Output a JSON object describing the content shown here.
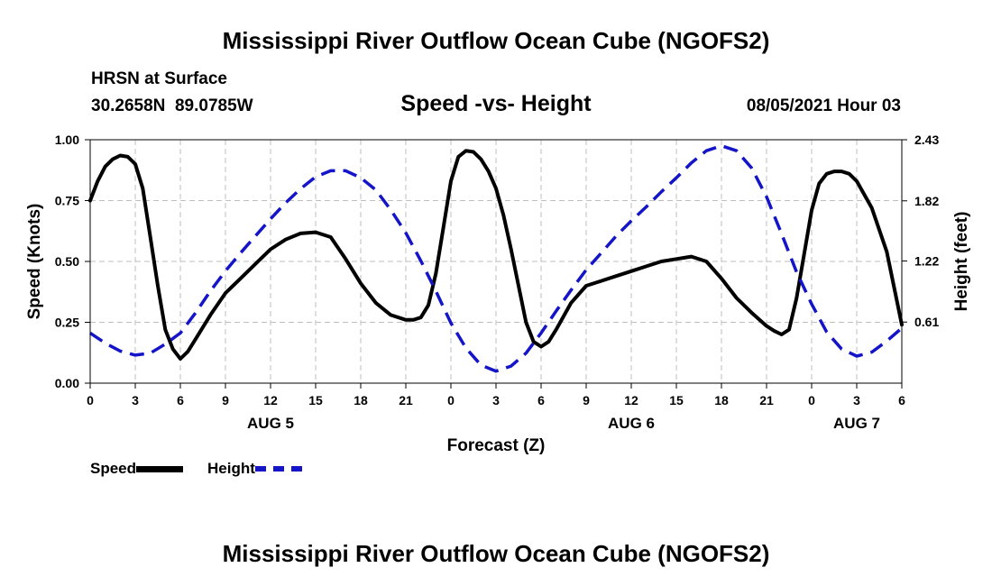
{
  "header": {
    "title": "Mississippi River Outflow Ocean Cube (NGOFS2)",
    "station_name": "HRSN at Surface",
    "coords": "30.2658N  89.0785W",
    "subtitle": "Speed -vs- Height",
    "datetime": "08/05/2021 Hour 03"
  },
  "footer": {
    "title": "Mississippi River Outflow Ocean Cube (NGOFS2)"
  },
  "colors": {
    "speed": "#000000",
    "height": "#1414c8",
    "grid": "#bfbfbf"
  },
  "chart_data": {
    "type": "line",
    "xlabel": "Forecast (Z)",
    "ylabel": "Speed (Knots)",
    "y2label": "Height (feet)",
    "xlim": [
      0,
      54
    ],
    "ylim": [
      0,
      1
    ],
    "y2lim": [
      0,
      2.43
    ],
    "x_ticks": [
      0,
      3,
      6,
      9,
      12,
      15,
      18,
      21,
      24,
      27,
      30,
      33,
      36,
      39,
      42,
      45,
      48,
      51,
      54
    ],
    "x_tick_labels": [
      "0",
      "3",
      "6",
      "9",
      "12",
      "15",
      "18",
      "21",
      "0",
      "3",
      "6",
      "9",
      "12",
      "15",
      "18",
      "21",
      "0",
      "3",
      "6"
    ],
    "y_ticks": [
      0,
      0.25,
      0.5,
      0.75,
      1.0
    ],
    "y_tick_labels": [
      "0.00",
      "0.25",
      "0.50",
      "0.75",
      "1.00"
    ],
    "y2_ticks": [
      0.61,
      1.22,
      1.82,
      2.43
    ],
    "y2_tick_labels": [
      "0.61",
      "1.22",
      "1.82",
      "2.43"
    ],
    "day_labels": [
      {
        "x": 12,
        "label": "AUG 5"
      },
      {
        "x": 36,
        "label": "AUG 6"
      },
      {
        "x": 51,
        "label": "AUG 7"
      }
    ],
    "grid": true,
    "legend_position": "bottom-left",
    "series": [
      {
        "name": "Speed",
        "axis": "left",
        "style": "solid",
        "x": [
          0,
          0.5,
          1,
          1.5,
          2,
          2.5,
          3,
          3.5,
          4,
          4.5,
          5,
          5.5,
          6,
          6.5,
          7,
          8,
          9,
          10,
          11,
          12,
          13,
          14,
          15,
          16,
          17,
          18,
          19,
          20,
          21,
          21.5,
          22,
          22.5,
          23,
          23.5,
          24,
          24.5,
          25,
          25.5,
          26,
          26.5,
          27,
          27.5,
          28,
          28.5,
          29,
          29.5,
          30,
          30.5,
          31,
          32,
          33,
          34,
          35,
          36,
          37,
          38,
          39,
          40,
          41,
          42,
          43,
          44,
          45,
          45.5,
          46,
          46.5,
          47,
          47.5,
          48,
          48.5,
          49,
          49.5,
          50,
          50.5,
          51,
          52,
          53,
          54
        ],
        "values": [
          0.75,
          0.83,
          0.89,
          0.92,
          0.935,
          0.93,
          0.9,
          0.8,
          0.6,
          0.4,
          0.22,
          0.14,
          0.1,
          0.13,
          0.18,
          0.28,
          0.37,
          0.43,
          0.49,
          0.55,
          0.59,
          0.615,
          0.62,
          0.6,
          0.51,
          0.41,
          0.33,
          0.28,
          0.26,
          0.26,
          0.27,
          0.32,
          0.45,
          0.64,
          0.83,
          0.93,
          0.955,
          0.95,
          0.92,
          0.87,
          0.8,
          0.69,
          0.55,
          0.4,
          0.25,
          0.17,
          0.15,
          0.17,
          0.22,
          0.33,
          0.4,
          0.42,
          0.44,
          0.46,
          0.48,
          0.5,
          0.51,
          0.52,
          0.5,
          0.43,
          0.35,
          0.29,
          0.235,
          0.215,
          0.2,
          0.22,
          0.35,
          0.53,
          0.71,
          0.82,
          0.86,
          0.87,
          0.87,
          0.86,
          0.83,
          0.72,
          0.54,
          0.24
        ]
      },
      {
        "name": "Height",
        "axis": "right",
        "style": "dashed",
        "x": [
          0,
          1,
          2,
          3,
          4,
          5,
          6,
          7,
          8,
          9,
          10,
          11,
          12,
          13,
          14,
          15,
          16,
          17,
          18,
          19,
          20,
          21,
          22,
          23,
          24,
          25,
          26,
          27,
          28,
          29,
          30,
          31,
          32,
          33,
          34,
          35,
          36,
          37,
          38,
          39,
          40,
          41,
          42,
          43,
          44,
          45,
          46,
          47,
          48,
          49,
          50,
          51,
          52,
          53,
          54
        ],
        "values": [
          0.5,
          0.4,
          0.32,
          0.28,
          0.3,
          0.39,
          0.5,
          0.7,
          0.92,
          1.12,
          1.3,
          1.47,
          1.64,
          1.8,
          1.94,
          2.06,
          2.12,
          2.12,
          2.05,
          1.93,
          1.73,
          1.5,
          1.22,
          0.92,
          0.6,
          0.35,
          0.18,
          0.12,
          0.17,
          0.3,
          0.5,
          0.72,
          0.93,
          1.13,
          1.3,
          1.47,
          1.62,
          1.76,
          1.91,
          2.05,
          2.2,
          2.32,
          2.37,
          2.32,
          2.15,
          1.86,
          1.49,
          1.11,
          0.79,
          0.51,
          0.34,
          0.27,
          0.31,
          0.42,
          0.55
        ]
      }
    ]
  }
}
